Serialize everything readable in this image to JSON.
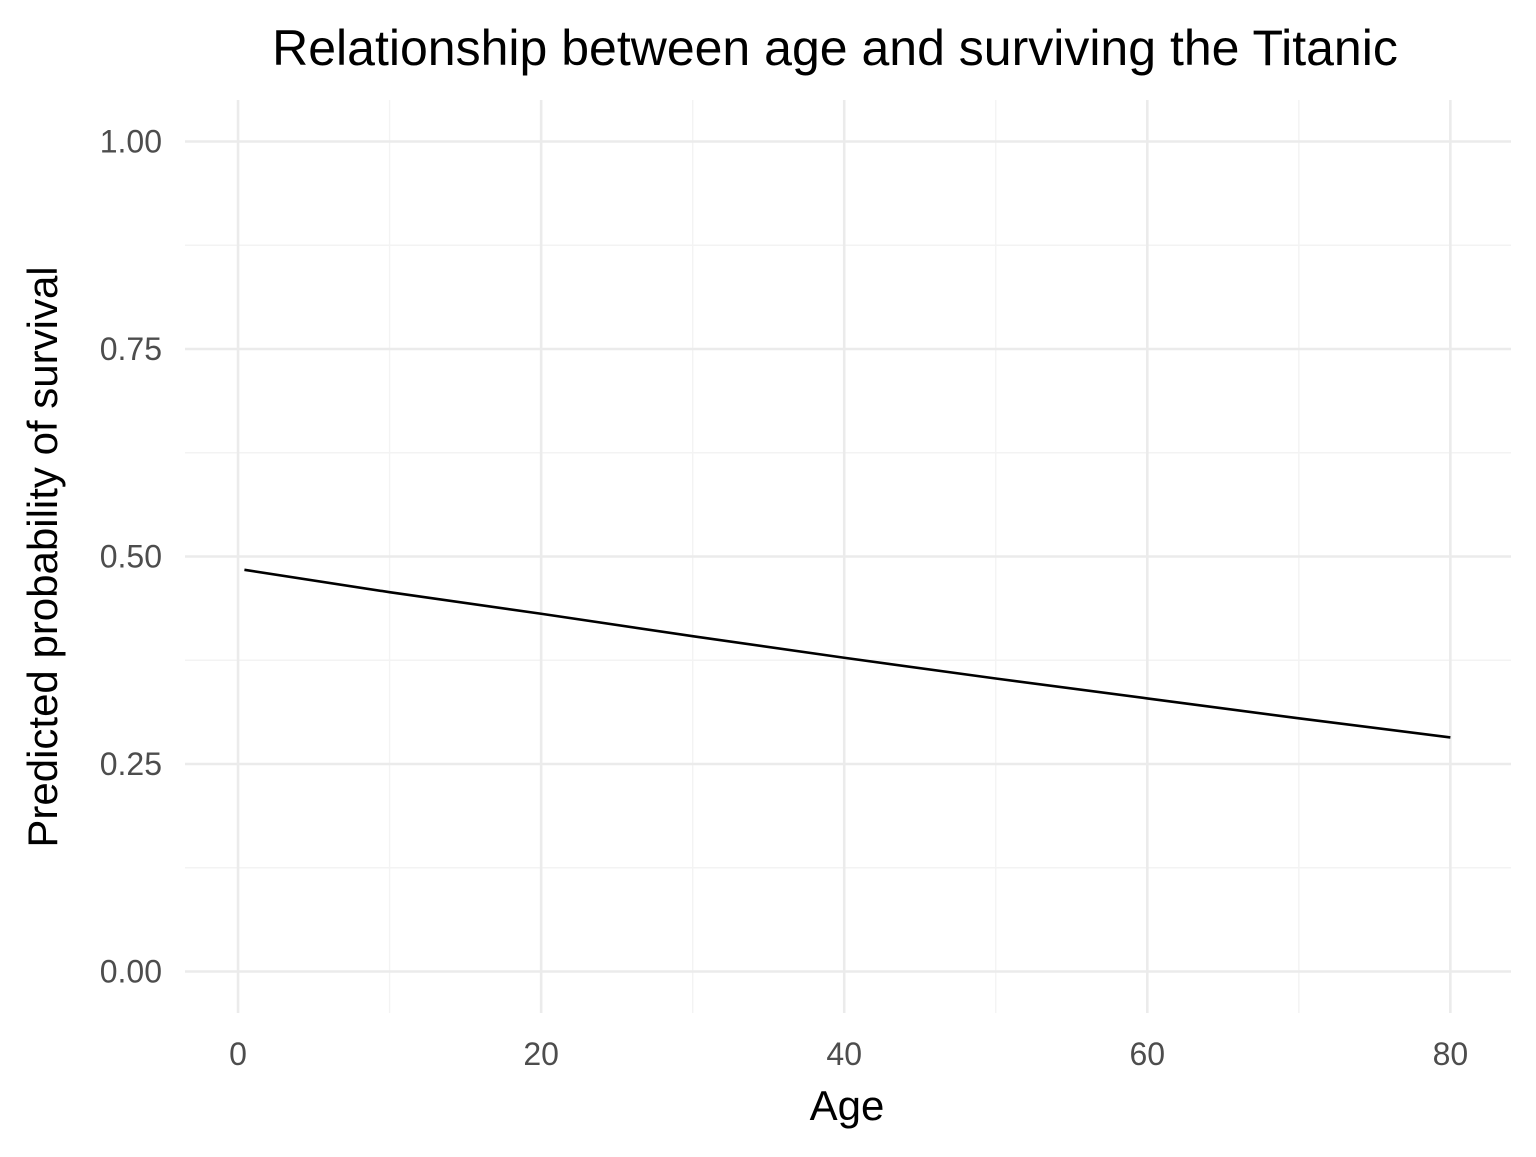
{
  "chart_data": {
    "type": "line",
    "title": "Relationship between age and surviving the Titanic",
    "xlabel": "Age",
    "ylabel": "Predicted probability of survival",
    "xlim": [
      -3.5,
      84
    ],
    "ylim": [
      -0.05,
      1.05
    ],
    "x_ticks": [
      0,
      20,
      40,
      60,
      80
    ],
    "x_tick_labels": [
      "0",
      "20",
      "40",
      "60",
      "80"
    ],
    "x_minor_ticks": [
      10,
      30,
      50,
      70
    ],
    "y_ticks": [
      0,
      0.25,
      0.5,
      0.75,
      1.0
    ],
    "y_tick_labels": [
      "0.00",
      "0.25",
      "0.50",
      "0.75",
      "1.00"
    ],
    "y_minor_ticks": [
      0.125,
      0.375,
      0.625,
      0.875
    ],
    "grid": true,
    "legend": "none",
    "series": [
      {
        "color": "#000000",
        "x": [
          0.42,
          10,
          20,
          30,
          40,
          50,
          60,
          70,
          80
        ],
        "y": [
          0.484,
          0.457,
          0.431,
          0.404,
          0.378,
          0.353,
          0.329,
          0.305,
          0.282
        ]
      }
    ]
  }
}
